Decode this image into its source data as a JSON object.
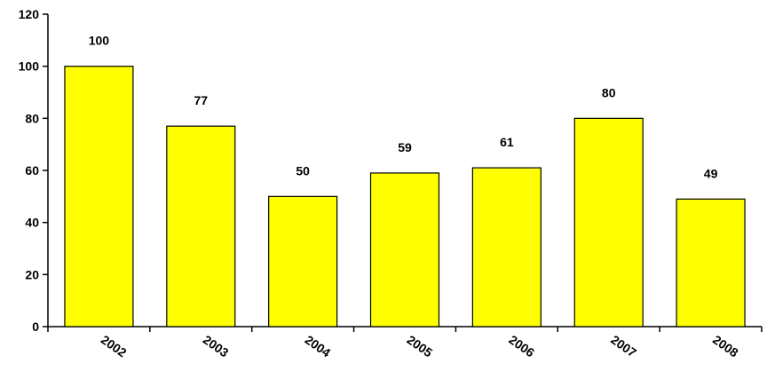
{
  "chart_data": {
    "type": "bar",
    "title": "",
    "xlabel": "",
    "ylabel": "",
    "categories": [
      "2002",
      "2003",
      "2004",
      "2005",
      "2006",
      "2007",
      "2008"
    ],
    "values": [
      100,
      77,
      50,
      59,
      61,
      80,
      49
    ],
    "ylim": [
      0,
      120
    ],
    "yticks": [
      0,
      20,
      40,
      60,
      80,
      100,
      120
    ],
    "grid": false,
    "legend": "none",
    "bar_color": "#FFFF00",
    "bar_edge_color": "#000000",
    "data_labels": true
  }
}
